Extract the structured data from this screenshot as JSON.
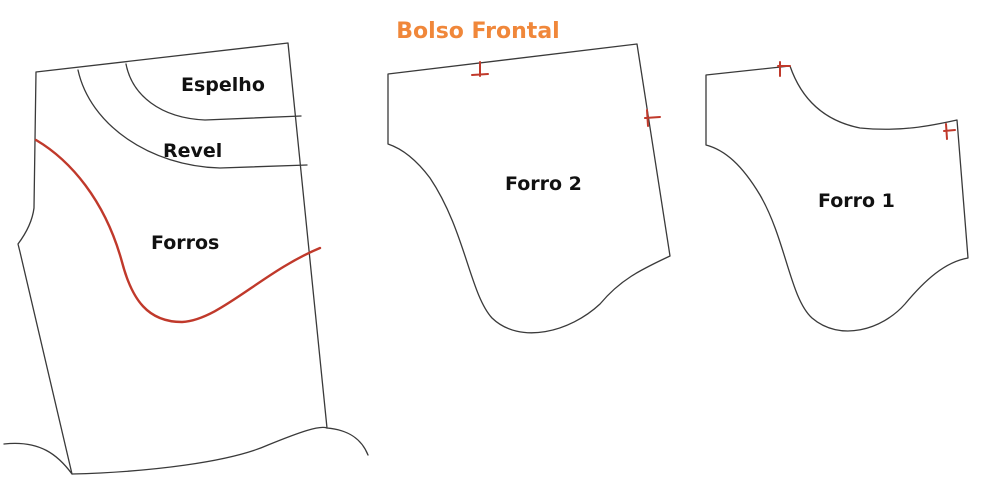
{
  "title": "Bolso Frontal",
  "labels": {
    "espelho": "Espelho",
    "revel": "Revel",
    "forros": "Forros",
    "forro2": "Forro 2",
    "forro1": "Forro 1"
  },
  "colors": {
    "title": "#f0873a",
    "outline": "#3a3a3a",
    "accent": "#c0392b",
    "marks": "#c0392b"
  }
}
